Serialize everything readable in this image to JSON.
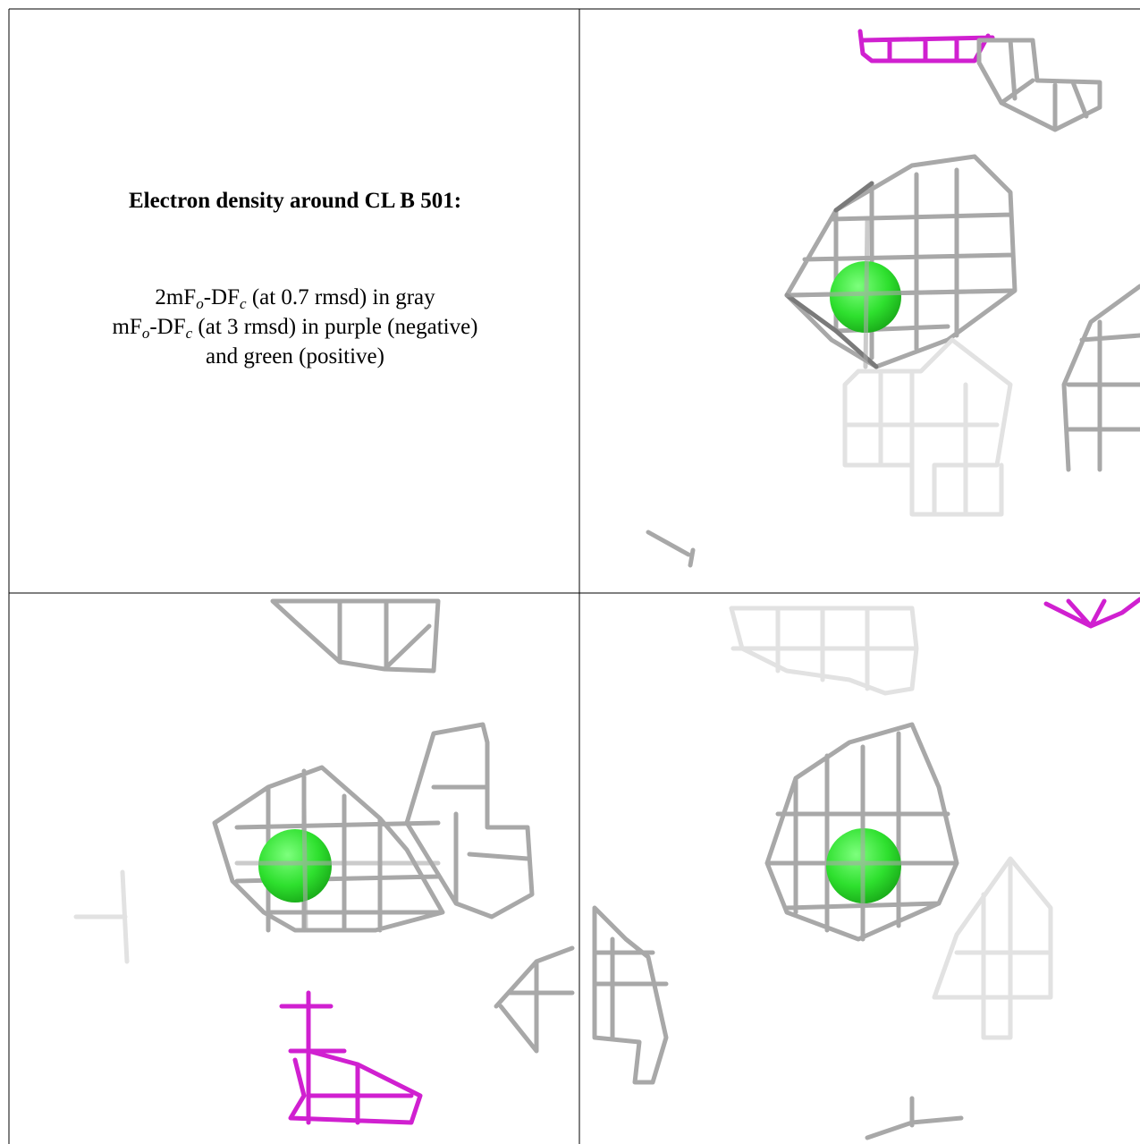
{
  "title": "Electron density around CL B 501:",
  "legend": {
    "lines": [
      [
        "2mF",
        "o",
        "-DF",
        "c",
        " (at 0.7 rmsd) in gray"
      ],
      [
        "mF",
        "o",
        "-DF",
        "c",
        " (at 3 rmsd) in purple (negative)"
      ],
      [
        "and green (positive)"
      ]
    ]
  }
}
